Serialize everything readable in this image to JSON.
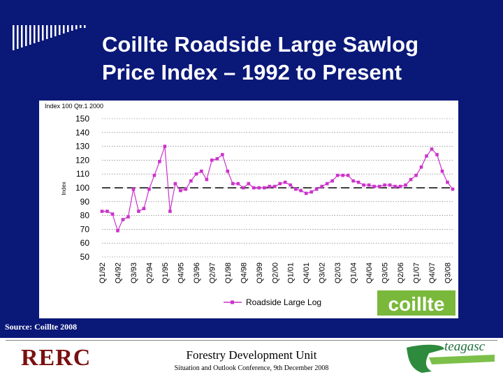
{
  "slide": {
    "title_line1": "Coillte Roadside Large Sawlog",
    "title_line2": "Price Index – 1992 to Present",
    "source": "Source: Coillte 2008"
  },
  "footer": {
    "org_logo": "RERC",
    "unit": "Forestry Development Unit",
    "conference": "Situation and Outlook Conference, 9th December 2008",
    "partner_logo": "teagasc"
  },
  "chart_data": {
    "type": "line",
    "header_note": "Index 100 Qtr.1 2000",
    "ylabel": "Index",
    "ylim": [
      50,
      150
    ],
    "yticks": [
      50,
      60,
      70,
      80,
      90,
      100,
      110,
      120,
      130,
      140,
      150
    ],
    "grid": true,
    "reference_line": 100,
    "legend_position": "bottom",
    "brand_logo": "coillte",
    "xtick_labels": [
      "Q1/92",
      "Q4/92",
      "Q3/93",
      "Q2/94",
      "Q1/95",
      "Q4/95",
      "Q3/96",
      "Q2/97",
      "Q1/98",
      "Q4/98",
      "Q3/99",
      "Q2/00",
      "Q1/01",
      "Q4/01",
      "Q3/02",
      "Q2/03",
      "Q1/04",
      "Q4/04",
      "Q3/05",
      "Q2/06",
      "Q1/07",
      "Q4/07",
      "Q3/08"
    ],
    "categories": [
      "Q1/92",
      "Q2/92",
      "Q3/92",
      "Q4/92",
      "Q1/93",
      "Q2/93",
      "Q3/93",
      "Q4/93",
      "Q1/94",
      "Q2/94",
      "Q3/94",
      "Q4/94",
      "Q1/95",
      "Q2/95",
      "Q3/95",
      "Q4/95",
      "Q1/96",
      "Q2/96",
      "Q3/96",
      "Q4/96",
      "Q1/97",
      "Q2/97",
      "Q3/97",
      "Q4/97",
      "Q1/98",
      "Q2/98",
      "Q3/98",
      "Q4/98",
      "Q1/99",
      "Q2/99",
      "Q3/99",
      "Q4/99",
      "Q1/00",
      "Q2/00",
      "Q3/00",
      "Q4/00",
      "Q1/01",
      "Q2/01",
      "Q3/01",
      "Q4/01",
      "Q1/02",
      "Q2/02",
      "Q3/02",
      "Q4/02",
      "Q1/03",
      "Q2/03",
      "Q3/03",
      "Q4/03",
      "Q1/04",
      "Q2/04",
      "Q3/04",
      "Q4/04",
      "Q1/05",
      "Q2/05",
      "Q3/05",
      "Q4/05",
      "Q1/06",
      "Q2/06",
      "Q3/06",
      "Q4/06",
      "Q1/07",
      "Q2/07",
      "Q3/07",
      "Q4/07",
      "Q1/08",
      "Q2/08",
      "Q3/08",
      "Q4/08"
    ],
    "series": [
      {
        "name": "Roadside Large Log",
        "color": "#cc33cc",
        "values": [
          83,
          83,
          81,
          69,
          77,
          79,
          99,
          83,
          85,
          99,
          109,
          119,
          130,
          83,
          103,
          98,
          99,
          105,
          110,
          112,
          106,
          120,
          121,
          124,
          112,
          103,
          103,
          100,
          103,
          100,
          100,
          100,
          101,
          101,
          103,
          104,
          102,
          99,
          98,
          96,
          97,
          99,
          101,
          103,
          105,
          109,
          109,
          109,
          105,
          104,
          102,
          102,
          101,
          101,
          102,
          102,
          101,
          101,
          102,
          106,
          109,
          115,
          123,
          128,
          124,
          112,
          104,
          99
        ]
      }
    ]
  }
}
